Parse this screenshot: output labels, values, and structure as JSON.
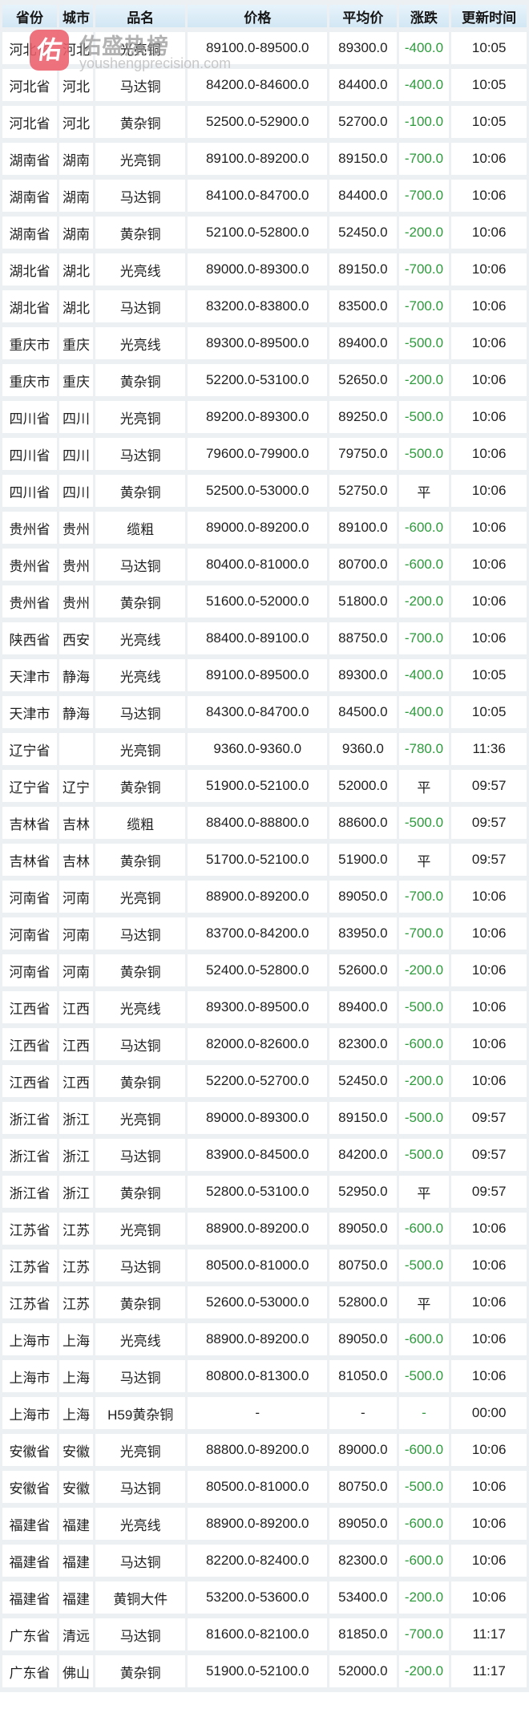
{
  "watermark": {
    "logo_char": "佑",
    "brand": "佑盛热榜",
    "site": "youshengprecision.com"
  },
  "colors": {
    "down_green": "#2e9b3d",
    "text_dark": "#1f1f1f",
    "header_blue": "#d9eaf6",
    "logo_red": "#ec5f6c"
  },
  "table": {
    "headers": [
      "省份",
      "城市",
      "品名",
      "价格",
      "平均价",
      "涨跌",
      "更新时间"
    ],
    "change_style_legend": {
      "g": "green-decline",
      "k": "black-flat"
    },
    "rows": [
      [
        "河北省",
        "河北",
        "光亮铜",
        "89100.0-89500.0",
        "89300.0",
        "-400.0",
        "g",
        "10:05"
      ],
      [
        "河北省",
        "河北",
        "马达铜",
        "84200.0-84600.0",
        "84400.0",
        "-400.0",
        "g",
        "10:05"
      ],
      [
        "河北省",
        "河北",
        "黄杂铜",
        "52500.0-52900.0",
        "52700.0",
        "-100.0",
        "g",
        "10:05"
      ],
      [
        "湖南省",
        "湖南",
        "光亮铜",
        "89100.0-89200.0",
        "89150.0",
        "-700.0",
        "g",
        "10:06"
      ],
      [
        "湖南省",
        "湖南",
        "马达铜",
        "84100.0-84700.0",
        "84400.0",
        "-700.0",
        "g",
        "10:06"
      ],
      [
        "湖南省",
        "湖南",
        "黄杂铜",
        "52100.0-52800.0",
        "52450.0",
        "-200.0",
        "g",
        "10:06"
      ],
      [
        "湖北省",
        "湖北",
        "光亮线",
        "89000.0-89300.0",
        "89150.0",
        "-700.0",
        "g",
        "10:06"
      ],
      [
        "湖北省",
        "湖北",
        "马达铜",
        "83200.0-83800.0",
        "83500.0",
        "-700.0",
        "g",
        "10:06"
      ],
      [
        "重庆市",
        "重庆",
        "光亮线",
        "89300.0-89500.0",
        "89400.0",
        "-500.0",
        "g",
        "10:06"
      ],
      [
        "重庆市",
        "重庆",
        "黄杂铜",
        "52200.0-53100.0",
        "52650.0",
        "-200.0",
        "g",
        "10:06"
      ],
      [
        "四川省",
        "四川",
        "光亮铜",
        "89200.0-89300.0",
        "89250.0",
        "-500.0",
        "g",
        "10:06"
      ],
      [
        "四川省",
        "四川",
        "马达铜",
        "79600.0-79900.0",
        "79750.0",
        "-500.0",
        "g",
        "10:06"
      ],
      [
        "四川省",
        "四川",
        "黄杂铜",
        "52500.0-53000.0",
        "52750.0",
        "平",
        "k",
        "10:06"
      ],
      [
        "贵州省",
        "贵州",
        "缆粗",
        "89000.0-89200.0",
        "89100.0",
        "-600.0",
        "g",
        "10:06"
      ],
      [
        "贵州省",
        "贵州",
        "马达铜",
        "80400.0-81000.0",
        "80700.0",
        "-600.0",
        "g",
        "10:06"
      ],
      [
        "贵州省",
        "贵州",
        "黄杂铜",
        "51600.0-52000.0",
        "51800.0",
        "-200.0",
        "g",
        "10:06"
      ],
      [
        "陕西省",
        "西安",
        "光亮线",
        "88400.0-89100.0",
        "88750.0",
        "-700.0",
        "g",
        "10:06"
      ],
      [
        "天津市",
        "静海",
        "光亮线",
        "89100.0-89500.0",
        "89300.0",
        "-400.0",
        "g",
        "10:05"
      ],
      [
        "天津市",
        "静海",
        "马达铜",
        "84300.0-84700.0",
        "84500.0",
        "-400.0",
        "g",
        "10:05"
      ],
      [
        "辽宁省",
        "",
        "光亮铜",
        "9360.0-9360.0",
        "9360.0",
        "-780.0",
        "g",
        "11:36"
      ],
      [
        "辽宁省",
        "辽宁",
        "黄杂铜",
        "51900.0-52100.0",
        "52000.0",
        "平",
        "k",
        "09:57"
      ],
      [
        "吉林省",
        "吉林",
        "缆粗",
        "88400.0-88800.0",
        "88600.0",
        "-500.0",
        "g",
        "09:57"
      ],
      [
        "吉林省",
        "吉林",
        "黄杂铜",
        "51700.0-52100.0",
        "51900.0",
        "平",
        "k",
        "09:57"
      ],
      [
        "河南省",
        "河南",
        "光亮铜",
        "88900.0-89200.0",
        "89050.0",
        "-700.0",
        "g",
        "10:06"
      ],
      [
        "河南省",
        "河南",
        "马达铜",
        "83700.0-84200.0",
        "83950.0",
        "-700.0",
        "g",
        "10:06"
      ],
      [
        "河南省",
        "河南",
        "黄杂铜",
        "52400.0-52800.0",
        "52600.0",
        "-200.0",
        "g",
        "10:06"
      ],
      [
        "江西省",
        "江西",
        "光亮线",
        "89300.0-89500.0",
        "89400.0",
        "-500.0",
        "g",
        "10:06"
      ],
      [
        "江西省",
        "江西",
        "马达铜",
        "82000.0-82600.0",
        "82300.0",
        "-600.0",
        "g",
        "10:06"
      ],
      [
        "江西省",
        "江西",
        "黄杂铜",
        "52200.0-52700.0",
        "52450.0",
        "-200.0",
        "g",
        "10:06"
      ],
      [
        "浙江省",
        "浙江",
        "光亮铜",
        "89000.0-89300.0",
        "89150.0",
        "-500.0",
        "g",
        "09:57"
      ],
      [
        "浙江省",
        "浙江",
        "马达铜",
        "83900.0-84500.0",
        "84200.0",
        "-500.0",
        "g",
        "09:57"
      ],
      [
        "浙江省",
        "浙江",
        "黄杂铜",
        "52800.0-53100.0",
        "52950.0",
        "平",
        "k",
        "09:57"
      ],
      [
        "江苏省",
        "江苏",
        "光亮铜",
        "88900.0-89200.0",
        "89050.0",
        "-600.0",
        "g",
        "10:06"
      ],
      [
        "江苏省",
        "江苏",
        "马达铜",
        "80500.0-81000.0",
        "80750.0",
        "-500.0",
        "g",
        "10:06"
      ],
      [
        "江苏省",
        "江苏",
        "黄杂铜",
        "52600.0-53000.0",
        "52800.0",
        "平",
        "k",
        "10:06"
      ],
      [
        "上海市",
        "上海",
        "光亮线",
        "88900.0-89200.0",
        "89050.0",
        "-600.0",
        "g",
        "10:06"
      ],
      [
        "上海市",
        "上海",
        "马达铜",
        "80800.0-81300.0",
        "81050.0",
        "-500.0",
        "g",
        "10:06"
      ],
      [
        "上海市",
        "上海",
        "H59黄杂铜",
        "-",
        "-",
        "-",
        "g",
        "00:00"
      ],
      [
        "安徽省",
        "安徽",
        "光亮铜",
        "88800.0-89200.0",
        "89000.0",
        "-600.0",
        "g",
        "10:06"
      ],
      [
        "安徽省",
        "安徽",
        "马达铜",
        "80500.0-81000.0",
        "80750.0",
        "-500.0",
        "g",
        "10:06"
      ],
      [
        "福建省",
        "福建",
        "光亮线",
        "88900.0-89200.0",
        "89050.0",
        "-600.0",
        "g",
        "10:06"
      ],
      [
        "福建省",
        "福建",
        "马达铜",
        "82200.0-82400.0",
        "82300.0",
        "-600.0",
        "g",
        "10:06"
      ],
      [
        "福建省",
        "福建",
        "黄铜大件",
        "53200.0-53600.0",
        "53400.0",
        "-200.0",
        "g",
        "10:06"
      ],
      [
        "广东省",
        "清远",
        "马达铜",
        "81600.0-82100.0",
        "81850.0",
        "-700.0",
        "g",
        "11:17"
      ],
      [
        "广东省",
        "佛山",
        "黄杂铜",
        "51900.0-52100.0",
        "52000.0",
        "-200.0",
        "g",
        "11:17"
      ]
    ]
  }
}
